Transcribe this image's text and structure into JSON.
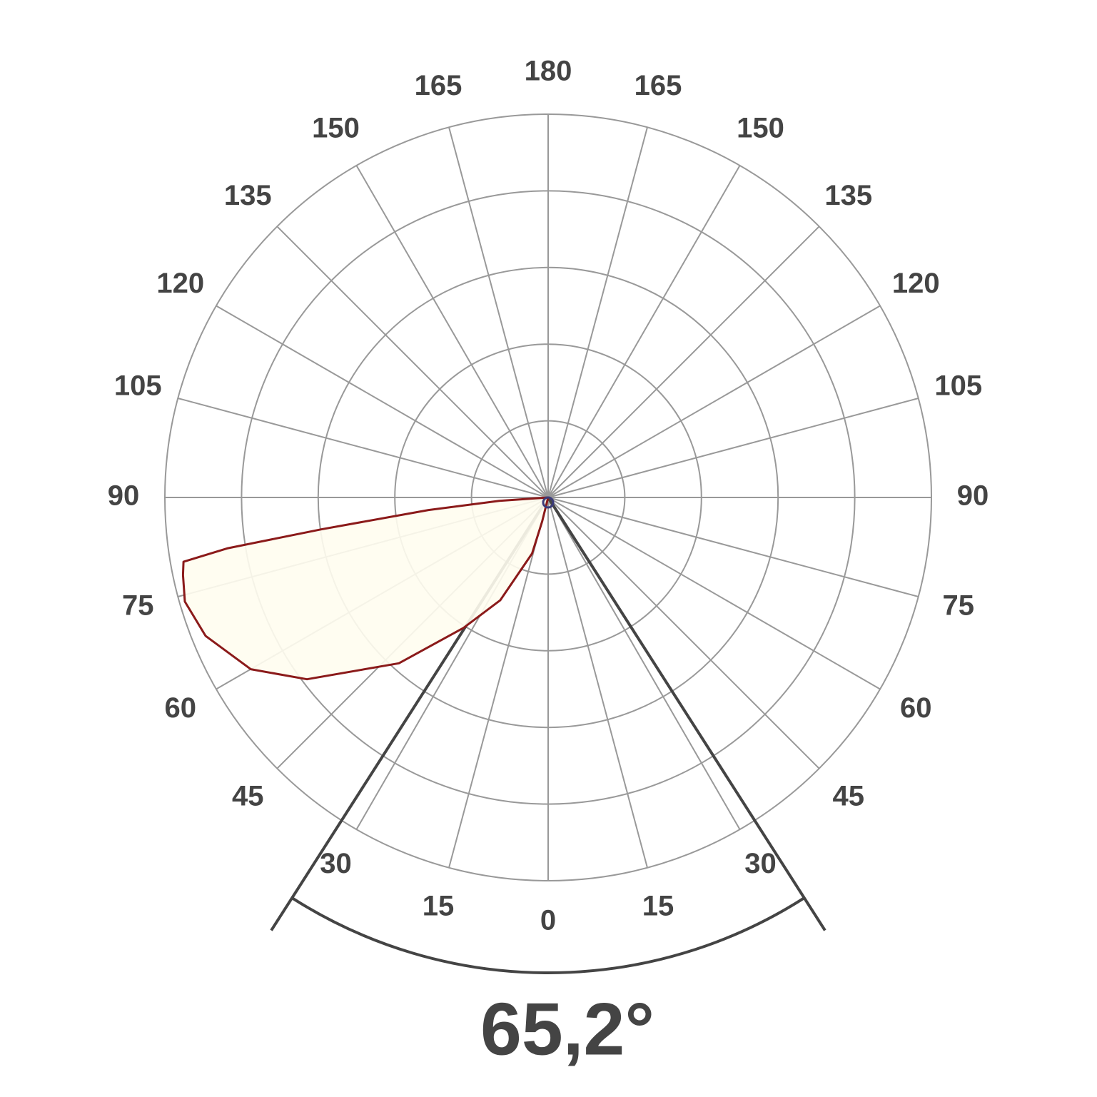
{
  "chart_data": {
    "type": "polar",
    "angle_ticks": [
      0,
      15,
      30,
      45,
      60,
      75,
      90,
      105,
      120,
      135,
      150,
      165,
      180
    ],
    "rlim": [
      0,
      5
    ],
    "ring_count": 5,
    "grid": true,
    "series": [
      {
        "color": "#8b1a1a",
        "fill": "#fffdf0",
        "side": "left",
        "x": [
          0,
          14,
          16,
          25,
          33,
          42,
          53,
          60,
          68,
          74,
          78,
          80,
          81,
          82,
          84,
          86,
          90
        ],
        "values": [
          0,
          0.32,
          0.76,
          1.48,
          2.03,
          2.91,
          3.94,
          4.48,
          4.82,
          4.93,
          4.87,
          4.83,
          4.23,
          2.99,
          1.57,
          0.64,
          0
        ]
      }
    ],
    "beam_angle": 65.2,
    "beam_angle_label": "65,2°"
  }
}
